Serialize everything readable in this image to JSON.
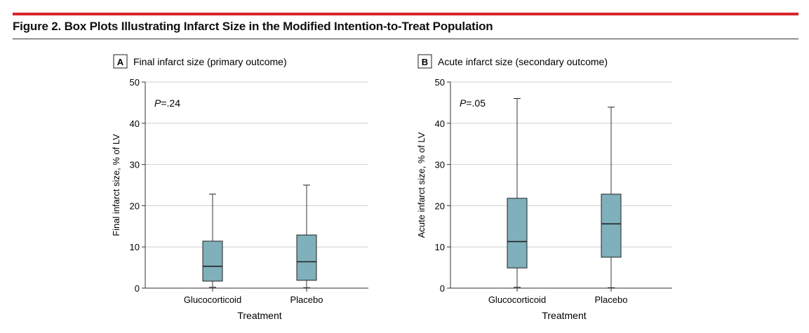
{
  "figure": {
    "title": "Figure 2. Box Plots Illustrating Infarct Size in the Modified Intention-to-Treat Population"
  },
  "colors": {
    "accent_bar": "#d9262c",
    "box_fill": "#7fb0bb",
    "box_stroke": "#222222",
    "grid": "#cfcfcf",
    "axis": "#333333"
  },
  "chart_data": [
    {
      "type": "box",
      "panel_letter": "A",
      "title": "Final infarct size (primary outcome)",
      "annotation": {
        "p_label": "P",
        "p_value": "=.24"
      },
      "xlabel": "Treatment",
      "ylabel": "Final infarct size, % of LV",
      "ylim": [
        0,
        50
      ],
      "yticks": [
        0,
        10,
        20,
        30,
        40,
        50
      ],
      "grid": true,
      "categories": [
        "Glucocorticoid",
        "Placebo"
      ],
      "boxes": [
        {
          "category": "Glucocorticoid",
          "min": 0.2,
          "q1": 1.7,
          "median": 5.3,
          "q3": 11.4,
          "max": 22.8
        },
        {
          "category": "Placebo",
          "min": 0.1,
          "q1": 1.9,
          "median": 6.4,
          "q3": 12.9,
          "max": 25.0
        }
      ]
    },
    {
      "type": "box",
      "panel_letter": "B",
      "title": "Acute infarct size (secondary outcome)",
      "annotation": {
        "p_label": "P",
        "p_value": "=.05"
      },
      "xlabel": "Treatment",
      "ylabel": "Acute infarct size, % of LV",
      "ylim": [
        0,
        50
      ],
      "yticks": [
        0,
        10,
        20,
        30,
        40,
        50
      ],
      "grid": true,
      "categories": [
        "Glucocorticoid",
        "Placebo"
      ],
      "boxes": [
        {
          "category": "Glucocorticoid",
          "min": 0.2,
          "q1": 4.9,
          "median": 11.3,
          "q3": 21.8,
          "max": 46.0
        },
        {
          "category": "Placebo",
          "min": 0.1,
          "q1": 7.5,
          "median": 15.6,
          "q3": 22.8,
          "max": 43.9
        }
      ]
    }
  ]
}
